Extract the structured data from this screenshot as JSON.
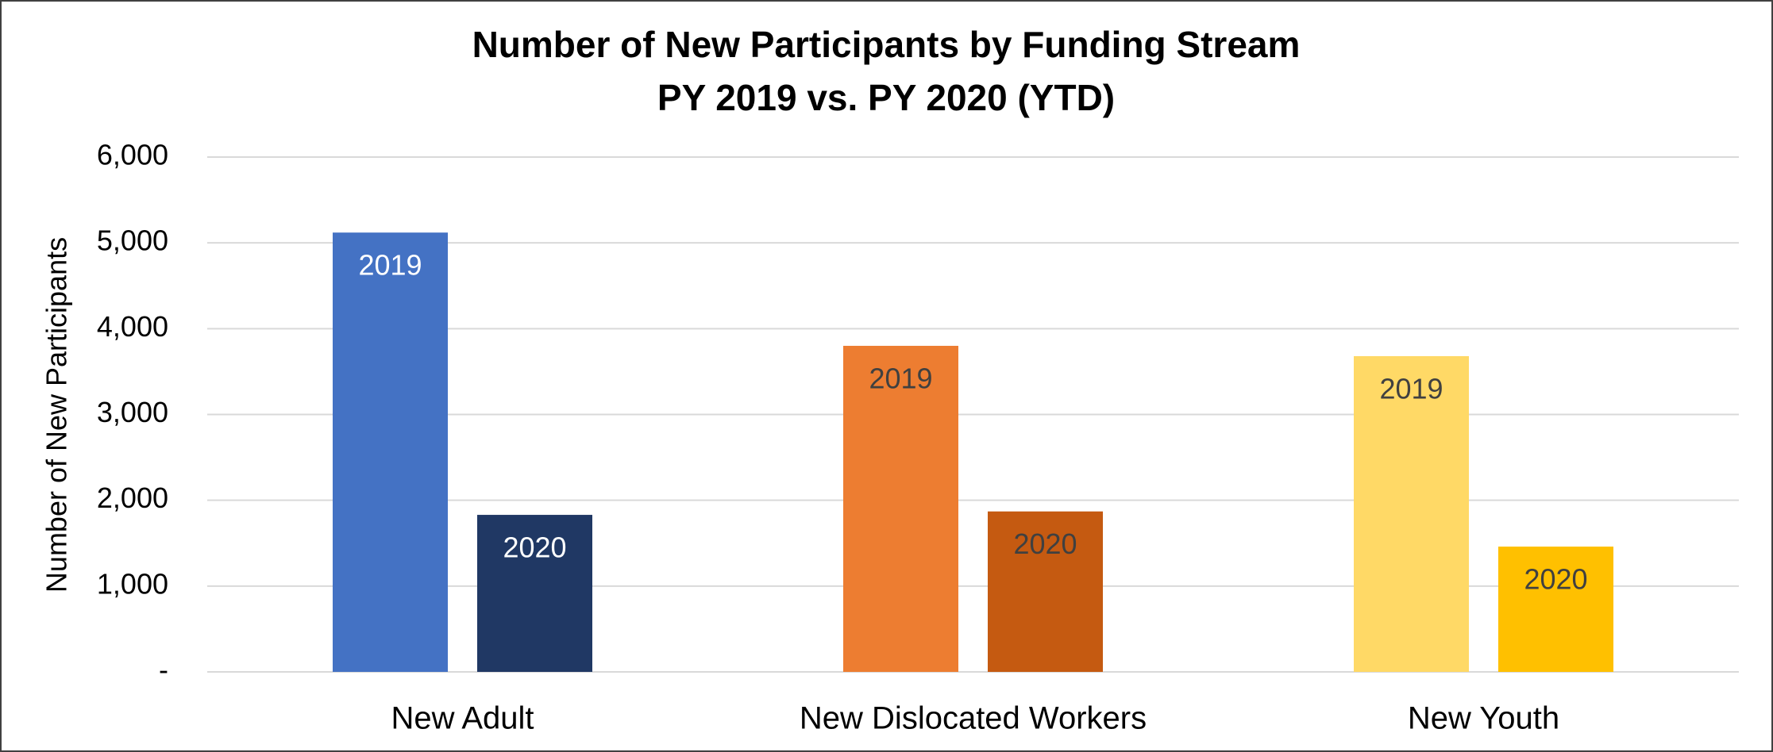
{
  "chart_data": {
    "type": "bar",
    "title": [
      "Number of New Participants by Funding Stream",
      "PY 2019  vs. PY 2020 (YTD)"
    ],
    "y_label": "Number of New Participants",
    "categories": [
      "New Adult",
      "New Dislocated Workers",
      "New Youth"
    ],
    "series": [
      {
        "name": "2019",
        "colors": [
          "#4472c4",
          "#ed7d31",
          "#ffd966"
        ],
        "label_colors": [
          "#ffffff",
          "#404040",
          "#404040"
        ],
        "values": [
          5120,
          3800,
          3680
        ]
      },
      {
        "name": "2020",
        "colors": [
          "#203864",
          "#c55a11",
          "#ffc000"
        ],
        "label_colors": [
          "#ffffff",
          "#404040",
          "#404040"
        ],
        "values": [
          1830,
          1870,
          1460
        ]
      }
    ],
    "ylim": [
      0,
      6000
    ],
    "yticks": [
      {
        "value": 0,
        "label": "-"
      },
      {
        "value": 1000,
        "label": "1,000"
      },
      {
        "value": 2000,
        "label": "2,000"
      },
      {
        "value": 3000,
        "label": "3,000"
      },
      {
        "value": 4000,
        "label": "4,000"
      },
      {
        "value": 5000,
        "label": "5,000"
      },
      {
        "value": 6000,
        "label": "6,000"
      }
    ],
    "grid": true
  }
}
